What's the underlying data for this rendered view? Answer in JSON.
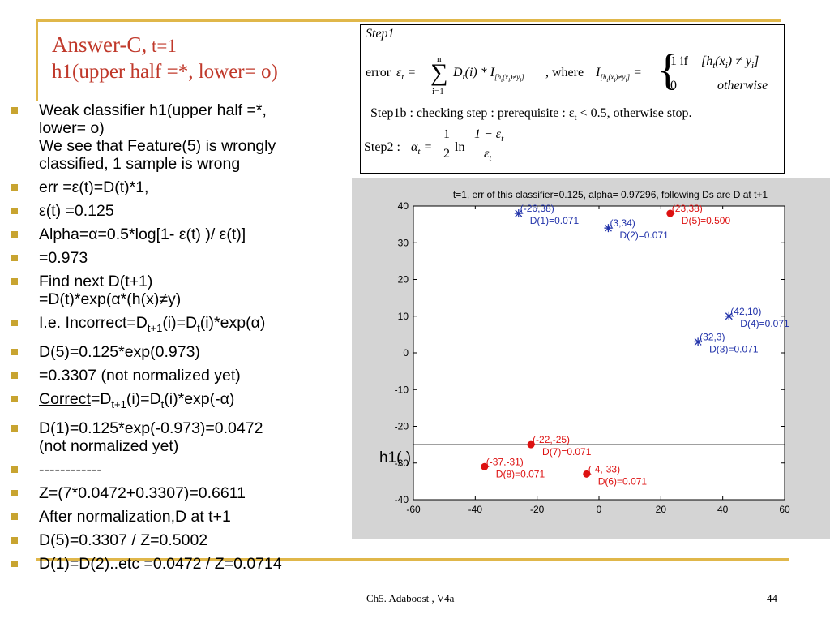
{
  "title": {
    "line1_main": "Answer-C,",
    "line1_sub": " t=1",
    "line2": "h1(upper half =*, lower= o)"
  },
  "bullets": [
    {
      "lines": [
        "Weak classifier h1(upper half =*,",
        "lower= o)",
        "We see that Feature(5) is wrongly",
        "classified, 1 sample is wrong"
      ]
    },
    {
      "text": "err =ε(t)=D(t)*1,"
    },
    {
      "text": "ε(t) =0.125"
    },
    {
      "text": "Alpha=α=0.5*log[1- ε(t) )/ ε(t)]"
    },
    {
      "text": "=0.973"
    },
    {
      "lines": [
        "Find next D(t+1)",
        "=D(t)*exp(α*(h(x)≠y)"
      ]
    },
    {
      "rich": "ie_incorrect",
      "prefix": "I.e. ",
      "under": "Incorrect",
      "a": "=D",
      "s1": "t+1",
      "b": "(i)=D",
      "s2": "t",
      "c": "(i)*exp(α)"
    },
    {
      "text": "D(5)=0.125*exp(0.973)"
    },
    {
      "text": "=0.3307 (not normalized yet)"
    },
    {
      "rich": "correct",
      "prefix": "",
      "under": "Correct",
      "a": "=D",
      "s1": "t+1",
      "b": "(i)=D",
      "s2": "t",
      "c": "(i)*exp(-α)"
    },
    {
      "lines": [
        "D(1)=0.125*exp(-0.973)=0.0472",
        "(not normalized yet)"
      ]
    },
    {
      "text": "------------"
    },
    {
      "text": "Z=(7*0.0472+0.3307)=0.6611"
    },
    {
      "text": "After normalization,D at t+1"
    },
    {
      "text": "D(5)=0.3307 / Z=0.5002"
    },
    {
      "text": "D(1)=D(2)..etc =0.0472 / Z=0.0714"
    }
  ],
  "equations": {
    "step1": "Step1",
    "error_word": "error",
    "sum_top": "n",
    "sum_bottom": "i=1",
    "where": ", where",
    "if_text": "1  if",
    "zero": "0",
    "otherwise": "otherwise",
    "step1b": "Step1b : checking step : prerequisite : ε",
    "step1b_tail": " < 0.5, otherwise stop.",
    "step2": "Step2 :",
    "frac_half_num": "1",
    "frac_half_den": "2",
    "ln": "ln",
    "frac_eps_num": "1 − ε",
    "frac_eps_den": "ε"
  },
  "chart_data": {
    "type": "scatter",
    "title": "t=1, err of this classifier=0.125, alpha=  0.97296, following Ds are D at t+1",
    "xlim": [
      -60,
      60
    ],
    "ylim": [
      -40,
      40
    ],
    "xticks": [
      -60,
      -40,
      -20,
      0,
      20,
      40,
      60
    ],
    "yticks": [
      40,
      30,
      20,
      10,
      0,
      -10,
      -20,
      -30,
      -40
    ],
    "hline_y": -25,
    "hline_label": "h1(  )",
    "colors": {
      "star": "#2233aa",
      "dot": "#dd1111"
    },
    "points": [
      {
        "x": -26,
        "y": 38,
        "marker": "star",
        "label1": "(-26,38)",
        "label2": "D(1)=0.071"
      },
      {
        "x": 3,
        "y": 34,
        "marker": "star",
        "label1": "(3,34)",
        "label2": "D(2)=0.071"
      },
      {
        "x": 23,
        "y": 38,
        "marker": "dot",
        "label1": "(23,38)",
        "label2": "D(5)=0.500"
      },
      {
        "x": 42,
        "y": 10,
        "marker": "star",
        "label1": "(42,10)",
        "label2": "D(4)=0.071"
      },
      {
        "x": 32,
        "y": 3,
        "marker": "star",
        "label1": "(32,3)",
        "label2": "D(3)=0.071"
      },
      {
        "x": -22,
        "y": -25,
        "marker": "dot",
        "label1": "(-22,-25)",
        "label2": "D(7)=0.071"
      },
      {
        "x": -37,
        "y": -31,
        "marker": "dot",
        "label1": "(-37,-31)",
        "label2": "D(8)=0.071"
      },
      {
        "x": -4,
        "y": -33,
        "marker": "dot",
        "label1": "(-4,-33)",
        "label2": "D(6)=0.071"
      }
    ]
  },
  "footer": {
    "left": "Ch5. Adaboost , V4a",
    "right": "44"
  }
}
